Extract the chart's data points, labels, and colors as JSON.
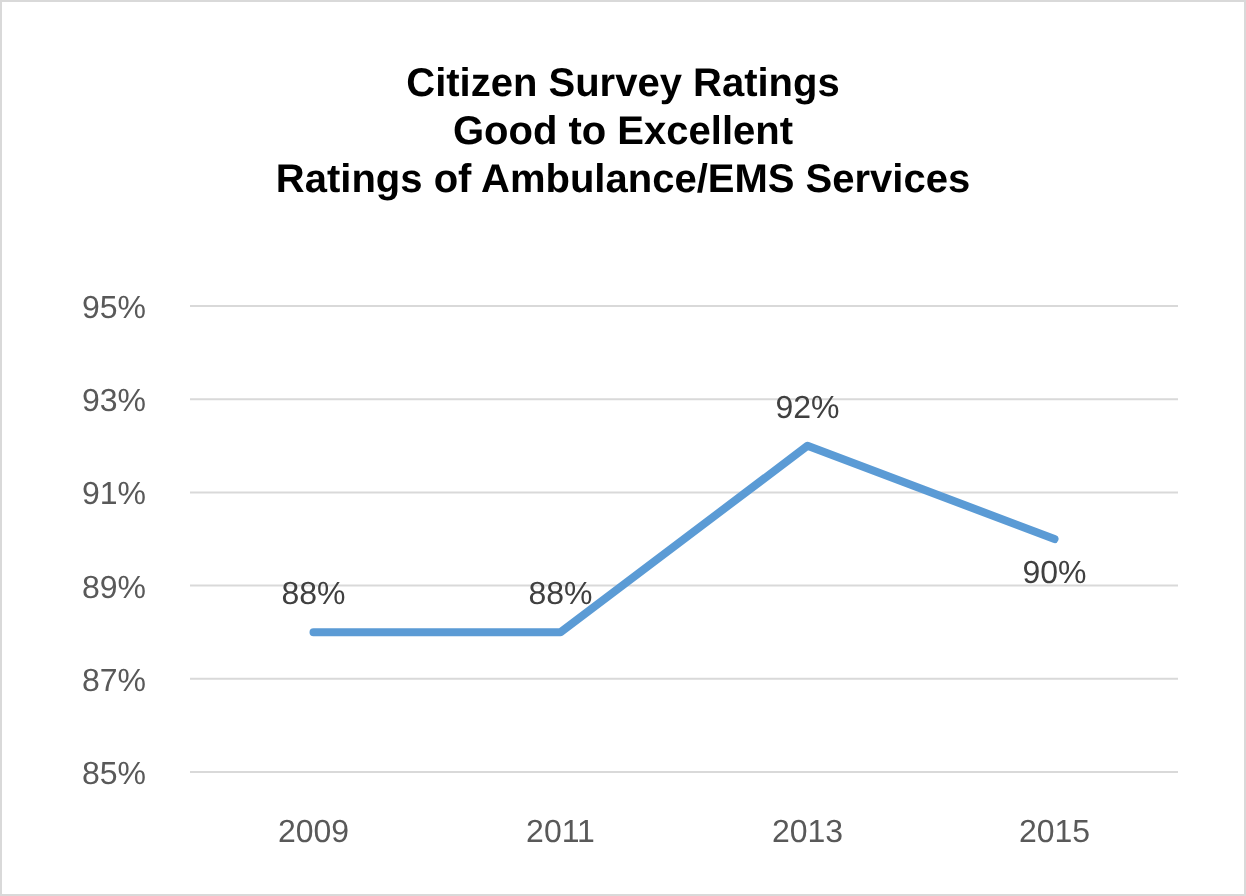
{
  "chart_data": {
    "type": "line",
    "title": "Citizen Survey Ratings\nGood to Excellent\nRatings of Ambulance/EMS Services",
    "categories": [
      "2009",
      "2011",
      "2013",
      "2015"
    ],
    "series": [
      {
        "color": "#5b9bd5",
        "values": [
          88,
          88,
          92,
          90
        ],
        "value_labels": [
          "88%",
          "88%",
          "92%",
          "90%"
        ]
      }
    ],
    "ylim": [
      85,
      95
    ],
    "yticks": [
      {
        "value": 85,
        "label": "85%"
      },
      {
        "value": 87,
        "label": "87%"
      },
      {
        "value": 89,
        "label": "89%"
      },
      {
        "value": 91,
        "label": "91%"
      },
      {
        "value": 93,
        "label": "93%"
      },
      {
        "value": 95,
        "label": "95%"
      }
    ],
    "grid": "y",
    "marker": "none",
    "line_style": "solid"
  }
}
